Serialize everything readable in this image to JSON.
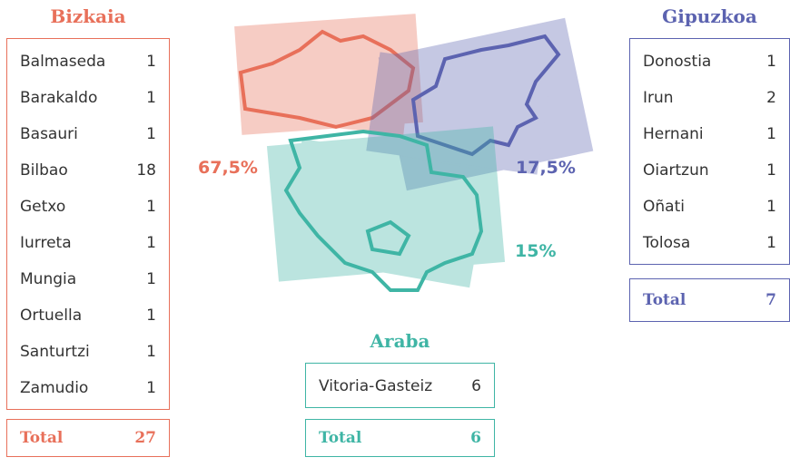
{
  "percent_sign": "%",
  "total_label": "Total",
  "regions": [
    {
      "name": "Bizkaia",
      "percent": "67,5",
      "total": 27,
      "municipalities": [
        {
          "name": "Balmaseda",
          "count": 1
        },
        {
          "name": "Barakaldo",
          "count": 1
        },
        {
          "name": "Basauri",
          "count": 1
        },
        {
          "name": "Bilbao",
          "count": 18
        },
        {
          "name": "Getxo",
          "count": 1
        },
        {
          "name": "Iurreta",
          "count": 1
        },
        {
          "name": "Mungia",
          "count": 1
        },
        {
          "name": "Ortuella",
          "count": 1
        },
        {
          "name": "Santurtzi",
          "count": 1
        },
        {
          "name": "Zamudio",
          "count": 1
        }
      ]
    },
    {
      "name": "Gipuzkoa",
      "percent": "17,5",
      "total": 7,
      "municipalities": [
        {
          "name": "Donostia",
          "count": 1
        },
        {
          "name": "Irun",
          "count": 2
        },
        {
          "name": "Hernani",
          "count": 1
        },
        {
          "name": "Oiartzun",
          "count": 1
        },
        {
          "name": "Oñati",
          "count": 1
        },
        {
          "name": "Tolosa",
          "count": 1
        }
      ]
    },
    {
      "name": "Araba",
      "percent": "15",
      "total": 6,
      "municipalities": [
        {
          "name": "Vitoria-Gasteiz",
          "count": 6
        }
      ]
    }
  ]
}
